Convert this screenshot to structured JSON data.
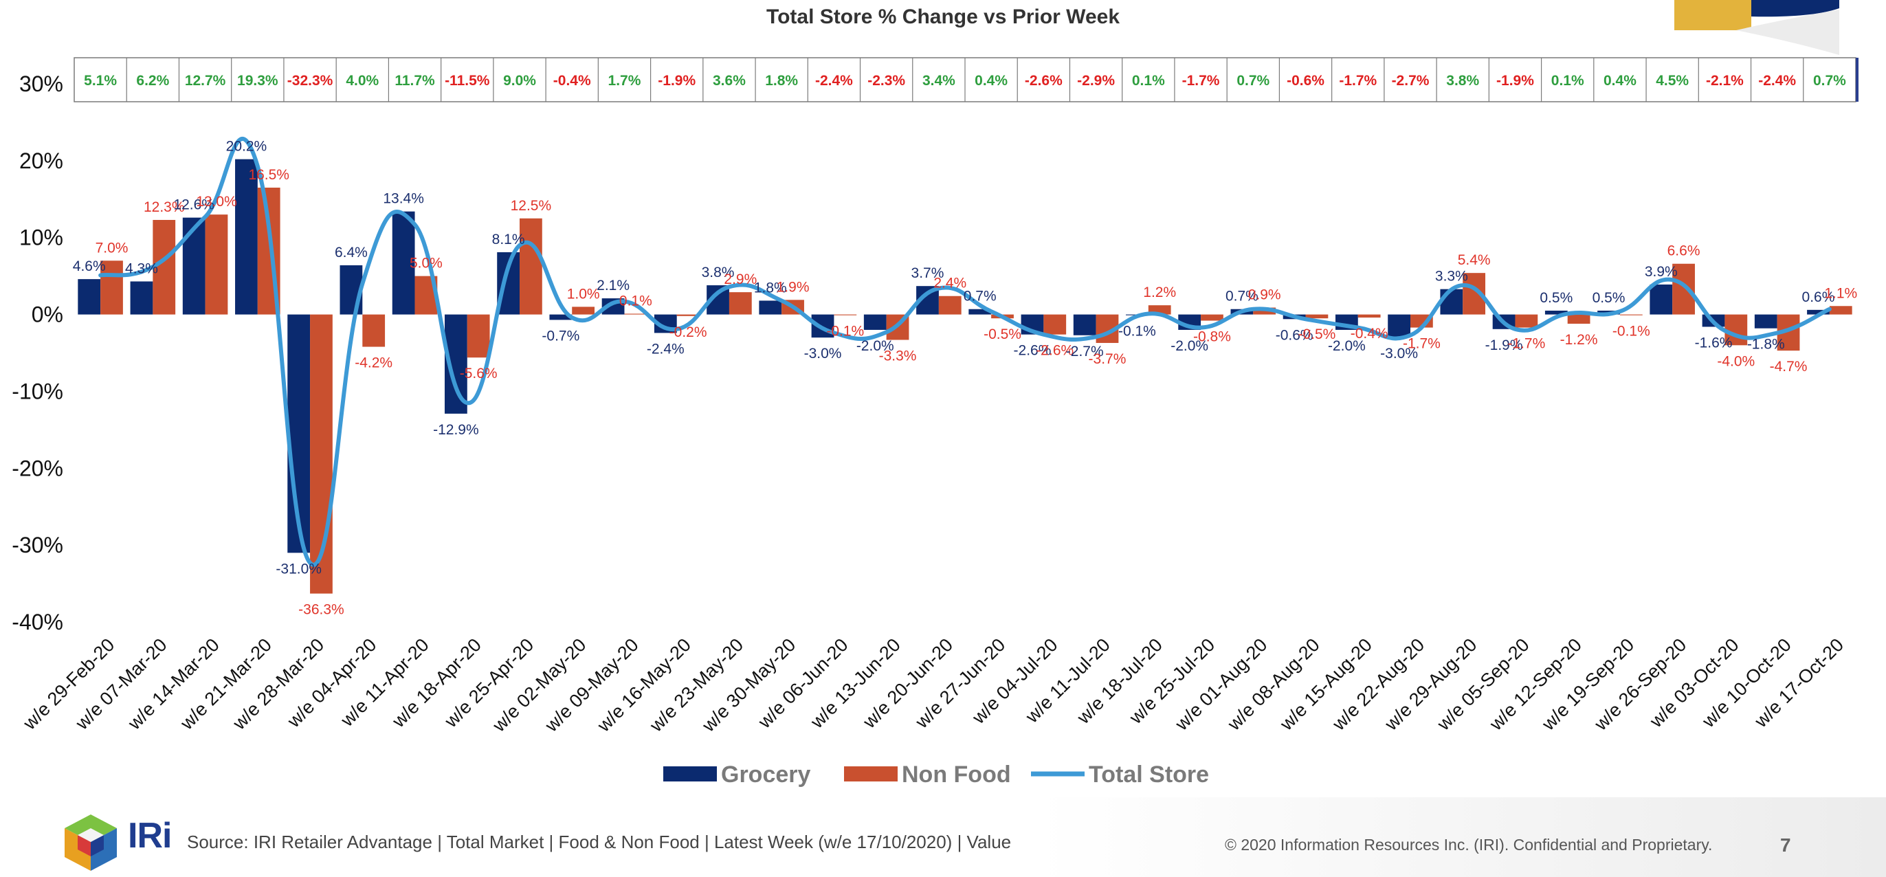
{
  "slide": {
    "title": "Total Store % Change vs Prior Week",
    "source": "Source: IRI Retailer Advantage | Total Market | Food & Non Food | Latest Week (w/e 17/10/2020) | Value",
    "copyright": "© 2020 Information Resources Inc. (IRI). Confidential and Proprietary.",
    "page_number": "7",
    "logo_text": "IRi"
  },
  "colors": {
    "grocery": "#0b2a6f",
    "non_food": "#c9502f",
    "total_store": "#3d9ad6",
    "positive_text": "#2e9e3e",
    "negative_text": "#e02020",
    "grocery_label": "#1b2f6e",
    "non_food_label": "#e0342a"
  },
  "chart_data": {
    "type": "bar",
    "title": "Total Store % Change vs Prior Week",
    "categories": [
      "w/e 29-Feb-20",
      "w/e 07-Mar-20",
      "w/e 14-Mar-20",
      "w/e 21-Mar-20",
      "w/e 28-Mar-20",
      "w/e 04-Apr-20",
      "w/e 11-Apr-20",
      "w/e 18-Apr-20",
      "w/e 25-Apr-20",
      "w/e 02-May-20",
      "w/e 09-May-20",
      "w/e 16-May-20",
      "w/e 23-May-20",
      "w/e 30-May-20",
      "w/e 06-Jun-20",
      "w/e 13-Jun-20",
      "w/e 20-Jun-20",
      "w/e 27-Jun-20",
      "w/e 04-Jul-20",
      "w/e 11-Jul-20",
      "w/e 18-Jul-20",
      "w/e 25-Jul-20",
      "w/e 01-Aug-20",
      "w/e 08-Aug-20",
      "w/e 15-Aug-20",
      "w/e 22-Aug-20",
      "w/e 29-Aug-20",
      "w/e 05-Sep-20",
      "w/e 12-Sep-20",
      "w/e 19-Sep-20",
      "w/e 26-Sep-20",
      "w/e 03-Oct-20",
      "w/e 10-Oct-20",
      "w/e 17-Oct-20"
    ],
    "series": [
      {
        "name": "Grocery",
        "type": "bar",
        "values": [
          4.6,
          4.3,
          12.6,
          20.2,
          -31.0,
          6.4,
          13.4,
          -12.9,
          8.1,
          -0.7,
          2.1,
          -2.4,
          3.8,
          1.8,
          -3.0,
          -2.0,
          3.7,
          0.7,
          -2.6,
          -2.7,
          -0.1,
          -2.0,
          0.7,
          -0.6,
          -2.0,
          -3.0,
          3.3,
          -1.9,
          0.5,
          0.5,
          3.9,
          -1.6,
          -1.8,
          0.6
        ],
        "labels": [
          "4.6%",
          "4.3%",
          "12.6%",
          "20.2%",
          "-31.0%",
          "6.4%",
          "13.4%",
          "-12.9%",
          "8.1%",
          "-0.7%",
          "2.1%",
          "-2.4%",
          "3.8%",
          "1.8%",
          "-3.0%",
          "-2.0%",
          "3.7%",
          "0.7%",
          "-2.6%",
          "-2.7%",
          "-0.1%",
          "-2.0%",
          "0.7%",
          "-0.6%",
          "-2.0%",
          "-3.0%",
          "3.3%",
          "-1.9%",
          "0.5%",
          "0.5%",
          "3.9%",
          "-1.6%",
          "-1.8%",
          "0.6%"
        ]
      },
      {
        "name": "Non Food",
        "type": "bar",
        "values": [
          7.0,
          12.3,
          13.0,
          16.5,
          -36.3,
          -4.2,
          5.0,
          -5.6,
          12.5,
          1.0,
          0.1,
          -0.2,
          2.9,
          1.9,
          -0.1,
          -3.3,
          2.4,
          -0.5,
          -2.6,
          -3.7,
          1.2,
          -0.8,
          0.9,
          -0.5,
          -0.4,
          -1.7,
          5.4,
          -1.7,
          -1.2,
          -0.1,
          6.6,
          -4.0,
          -4.7,
          1.1
        ],
        "labels": [
          "7.0%",
          "12.3%",
          "13.0%",
          "16.5%",
          "-36.3%",
          "-4.2%",
          "5.0%",
          "-5.6%",
          "12.5%",
          "1.0%",
          "0.1%",
          "-0.2%",
          "2.9%",
          "1.9%",
          "-0.1%",
          "-3.3%",
          "2.4%",
          "-0.5%",
          "-2.6%",
          "-3.7%",
          "1.2%",
          "-0.8%",
          "0.9%",
          "-0.5%",
          "-0.4%",
          "-1.7%",
          "5.4%",
          "-1.7%",
          "-1.2%",
          "-0.1%",
          "6.6%",
          "-4.0%",
          "-4.7%",
          "1.1%"
        ]
      },
      {
        "name": "Total Store",
        "type": "line",
        "values": [
          5.1,
          6.2,
          12.7,
          19.3,
          -32.3,
          4.0,
          11.7,
          -11.5,
          9.0,
          -0.4,
          1.7,
          -1.9,
          3.6,
          1.8,
          -2.4,
          -2.3,
          3.4,
          0.4,
          -2.6,
          -2.9,
          0.1,
          -1.7,
          0.7,
          -0.6,
          -1.7,
          -2.7,
          3.8,
          -1.9,
          0.1,
          0.4,
          4.5,
          -2.1,
          -2.4,
          0.7
        ],
        "labels": [
          "5.1%",
          "6.2%",
          "12.7%",
          "19.3%",
          "-32.3%",
          "4.0%",
          "11.7%",
          "-11.5%",
          "9.0%",
          "-0.4%",
          "1.7%",
          "-1.9%",
          "3.6%",
          "1.8%",
          "-2.4%",
          "-2.3%",
          "3.4%",
          "0.4%",
          "-2.6%",
          "-2.9%",
          "0.1%",
          "-1.7%",
          "0.7%",
          "-0.6%",
          "-1.7%",
          "-2.7%",
          "3.8%",
          "-1.9%",
          "0.1%",
          "0.4%",
          "4.5%",
          "-2.1%",
          "-2.4%",
          "0.7%"
        ]
      }
    ],
    "ylim": [
      -40,
      30
    ],
    "y_ticks": [
      30,
      20,
      10,
      0,
      -10,
      -20,
      -30,
      -40
    ],
    "y_tick_labels": [
      "30%",
      "20%",
      "10%",
      "0%",
      "-10%",
      "-20%",
      "-30%",
      "-40%"
    ],
    "xlabel": "",
    "ylabel": "",
    "grid": false,
    "legend_position": "bottom",
    "legend": [
      "Grocery",
      "Non Food",
      "Total Store"
    ]
  }
}
